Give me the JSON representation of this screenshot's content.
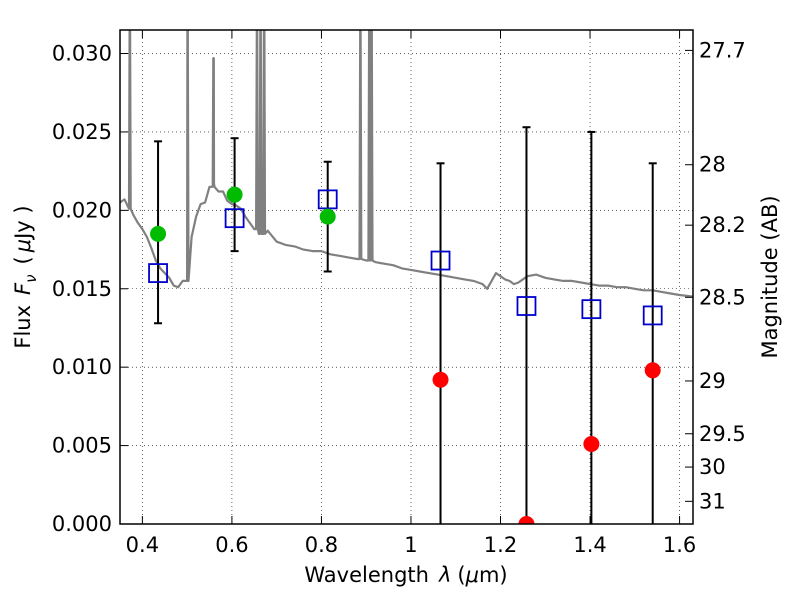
{
  "chart_data": {
    "type": "scatter",
    "xlabel_text": "Wavelength",
    "xlabel_sym": "λ",
    "xlabel_unit_open": "(",
    "xlabel_unit_mu": "μ",
    "xlabel_unit_rest": "m)",
    "ylabel_text": "Flux",
    "ylabel_sym": "F",
    "ylabel_sub": "ν",
    "ylabel_unit_open": "(",
    "ylabel_unit_mu": "μ",
    "ylabel_unit_rest": "Jy )",
    "y2label": "Magnitude (AB)",
    "xlim": [
      0.35,
      1.63
    ],
    "ylim": [
      0.0,
      0.0315
    ],
    "grid": true,
    "x_ticks": [
      {
        "v": 0.4,
        "label": "0.4"
      },
      {
        "v": 0.6,
        "label": "0.6"
      },
      {
        "v": 0.8,
        "label": "0.8"
      },
      {
        "v": 1.0,
        "label": "1"
      },
      {
        "v": 1.2,
        "label": "1.2"
      },
      {
        "v": 1.4,
        "label": "1.4"
      },
      {
        "v": 1.6,
        "label": "1.6"
      }
    ],
    "y_ticks": [
      {
        "v": 0.0,
        "label": "0.000"
      },
      {
        "v": 0.005,
        "label": "0.005"
      },
      {
        "v": 0.01,
        "label": "0.010"
      },
      {
        "v": 0.015,
        "label": "0.015"
      },
      {
        "v": 0.02,
        "label": "0.020"
      },
      {
        "v": 0.025,
        "label": "0.025"
      },
      {
        "v": 0.03,
        "label": "0.030"
      }
    ],
    "y2_ticks": [
      {
        "mag": 27.7,
        "label": "27.7"
      },
      {
        "mag": 28.0,
        "label": "28"
      },
      {
        "mag": 28.2,
        "label": "28.2"
      },
      {
        "mag": 28.5,
        "label": "28.5"
      },
      {
        "mag": 29.0,
        "label": "29"
      },
      {
        "mag": 29.5,
        "label": "29.5"
      },
      {
        "mag": 30.0,
        "label": "30"
      },
      {
        "mag": 31.0,
        "label": "31"
      }
    ],
    "series": [
      {
        "kind": "model-spectrum",
        "color": "#808080",
        "points": [
          [
            0.35,
            0.0205
          ],
          [
            0.36,
            0.0207
          ],
          [
            0.37,
            0.0201
          ],
          [
            0.38,
            0.0197
          ],
          [
            0.39,
            0.0192
          ],
          [
            0.4,
            0.0188
          ],
          [
            0.41,
            0.0183
          ],
          [
            0.42,
            0.0176
          ],
          [
            0.43,
            0.0168
          ],
          [
            0.44,
            0.0163
          ],
          [
            0.45,
            0.016
          ],
          [
            0.46,
            0.0157
          ],
          [
            0.47,
            0.0152
          ],
          [
            0.48,
            0.0151
          ],
          [
            0.49,
            0.0155
          ],
          [
            0.5,
            0.0155
          ],
          [
            0.51,
            0.0183
          ],
          [
            0.52,
            0.0196
          ],
          [
            0.53,
            0.0204
          ],
          [
            0.54,
            0.0205
          ],
          [
            0.55,
            0.0215
          ],
          [
            0.56,
            0.0217
          ],
          [
            0.57,
            0.0212
          ],
          [
            0.58,
            0.0212
          ],
          [
            0.59,
            0.0206
          ],
          [
            0.6,
            0.0204
          ],
          [
            0.61,
            0.0203
          ],
          [
            0.62,
            0.0201
          ],
          [
            0.63,
            0.0196
          ],
          [
            0.64,
            0.0192
          ],
          [
            0.65,
            0.0188
          ],
          [
            0.66,
            0.0185
          ],
          [
            0.68,
            0.0187
          ],
          [
            0.7,
            0.018
          ],
          [
            0.72,
            0.0178
          ],
          [
            0.74,
            0.0177
          ],
          [
            0.76,
            0.0175
          ],
          [
            0.78,
            0.0174
          ],
          [
            0.8,
            0.0174
          ],
          [
            0.82,
            0.0172
          ],
          [
            0.84,
            0.0171
          ],
          [
            0.86,
            0.017
          ],
          [
            0.88,
            0.0169
          ],
          [
            0.9,
            0.0168
          ],
          [
            0.92,
            0.0167
          ],
          [
            0.94,
            0.0166
          ],
          [
            0.96,
            0.0165
          ],
          [
            0.98,
            0.0163
          ],
          [
            1.0,
            0.0162
          ],
          [
            1.02,
            0.0161
          ],
          [
            1.04,
            0.016
          ],
          [
            1.06,
            0.0159
          ],
          [
            1.08,
            0.0158
          ],
          [
            1.1,
            0.0157
          ],
          [
            1.12,
            0.0156
          ],
          [
            1.14,
            0.0155
          ],
          [
            1.16,
            0.0153
          ],
          [
            1.17,
            0.015
          ],
          [
            1.18,
            0.0155
          ],
          [
            1.19,
            0.016
          ],
          [
            1.2,
            0.0158
          ],
          [
            1.21,
            0.0156
          ],
          [
            1.22,
            0.0155
          ],
          [
            1.23,
            0.0153
          ],
          [
            1.24,
            0.0154
          ],
          [
            1.26,
            0.0158
          ],
          [
            1.28,
            0.0159
          ],
          [
            1.3,
            0.0157
          ],
          [
            1.32,
            0.0156
          ],
          [
            1.34,
            0.0155
          ],
          [
            1.36,
            0.0155
          ],
          [
            1.38,
            0.0154
          ],
          [
            1.4,
            0.0153
          ],
          [
            1.42,
            0.0152
          ],
          [
            1.44,
            0.0152
          ],
          [
            1.46,
            0.0151
          ],
          [
            1.48,
            0.0151
          ],
          [
            1.5,
            0.015
          ],
          [
            1.52,
            0.0149
          ],
          [
            1.54,
            0.0149
          ],
          [
            1.56,
            0.0148
          ],
          [
            1.58,
            0.0147
          ],
          [
            1.6,
            0.0146
          ],
          [
            1.63,
            0.0145
          ]
        ],
        "emission_lines": [
          {
            "x": 0.372,
            "peak": 0.0315
          },
          {
            "x": 0.501,
            "peak": 0.0315
          },
          {
            "x": 0.559,
            "peak": 0.0297
          },
          {
            "x": 0.656,
            "peak": 0.0315
          },
          {
            "x": 0.664,
            "peak": 0.0315
          },
          {
            "x": 0.672,
            "peak": 0.0315
          },
          {
            "x": 0.887,
            "peak": 0.0315
          },
          {
            "x": 0.907,
            "peak": 0.0315
          },
          {
            "x": 0.912,
            "peak": 0.0315
          }
        ]
      },
      {
        "kind": "model-photometry",
        "marker": "open-square",
        "color": "#0000cc",
        "points": [
          [
            0.435,
            0.016
          ],
          [
            0.606,
            0.0195
          ],
          [
            0.814,
            0.0207
          ],
          [
            1.066,
            0.0168
          ],
          [
            1.258,
            0.0139
          ],
          [
            1.403,
            0.0137
          ],
          [
            1.54,
            0.0133
          ]
        ]
      },
      {
        "kind": "observed-detections",
        "marker": "filled-circle",
        "color": "#00bb00",
        "points": [
          {
            "x": 0.435,
            "y": 0.0185,
            "err_lo": 0.0128,
            "err_hi": 0.0244
          },
          {
            "x": 0.606,
            "y": 0.021,
            "err_lo": 0.0174,
            "err_hi": 0.0246
          },
          {
            "x": 0.814,
            "y": 0.0196,
            "err_lo": 0.0161,
            "err_hi": 0.0231
          }
        ]
      },
      {
        "kind": "observed-nondetections",
        "marker": "filled-circle",
        "color": "#ff0000",
        "points": [
          {
            "x": 1.066,
            "y": 0.0092,
            "err_lo": 0.0,
            "err_hi": 0.023
          },
          {
            "x": 1.258,
            "y": 0.0,
            "err_lo": 0.0,
            "err_hi": 0.0253
          },
          {
            "x": 1.403,
            "y": 0.0051,
            "err_lo": 0.0,
            "err_hi": 0.025
          },
          {
            "x": 1.54,
            "y": 0.0098,
            "err_lo": 0.0,
            "err_hi": 0.023
          }
        ]
      }
    ]
  }
}
